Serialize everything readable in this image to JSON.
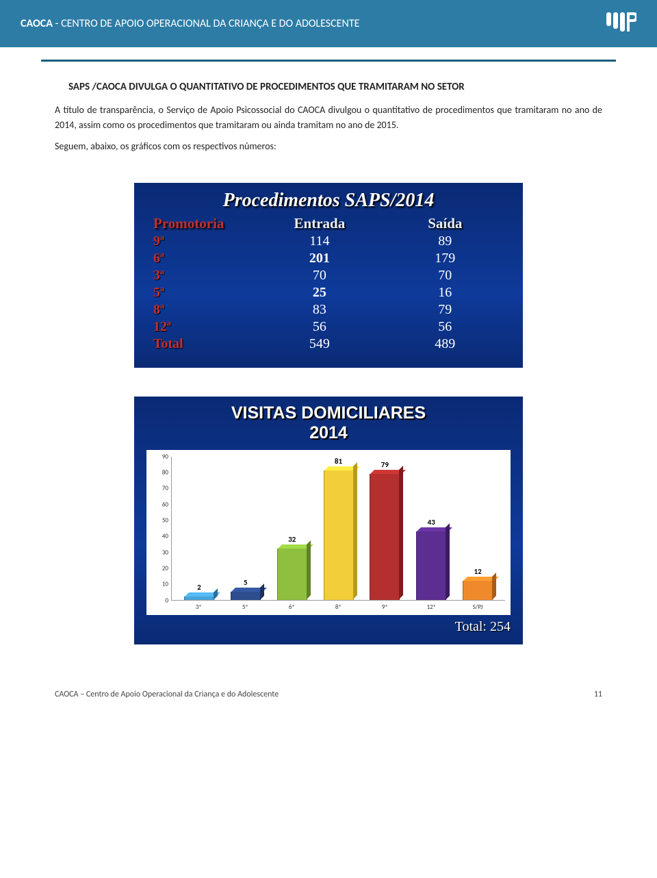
{
  "header": {
    "org_short": "CAOCA",
    "org_long": " - CENTRO DE APOIO OPERACIONAL DA CRIANÇA E DO ADOLESCENTE"
  },
  "section_title": "SAPS /CAOCA DIVULGA O QUANTITATIVO DE PROCEDIMENTOS QUE TRAMITARAM NO SETOR",
  "paragraphs": [
    "A título de transparência, o Serviço de Apoio Psicossocial do CAOCA divulgou o quantitativo de procedimentos que tramitaram no ano de 2014, assim como os procedimentos que tramitaram ou ainda tramitam no ano de 2015.",
    "Seguem, abaixo, os gráficos com os respectivos números:"
  ],
  "table_slide": {
    "title": "Procedimentos SAPS/2014",
    "headers": {
      "promotoria": "Promotoria",
      "entrada": "Entrada",
      "saida": "Saída"
    },
    "rows": [
      {
        "prom": "9ª",
        "entrada": "114",
        "saida": "89",
        "bold": false
      },
      {
        "prom": "6ª",
        "entrada": "201",
        "saida": "179",
        "bold": true
      },
      {
        "prom": "3ª",
        "entrada": "70",
        "saida": "70",
        "bold": false
      },
      {
        "prom": "5ª",
        "entrada": "25",
        "saida": "16",
        "bold": true
      },
      {
        "prom": "8ª",
        "entrada": "83",
        "saida": "79",
        "bold": false
      },
      {
        "prom": "12ª",
        "entrada": "56",
        "saida": "56",
        "bold": false
      },
      {
        "prom": "Total",
        "entrada": "549",
        "saida": "489",
        "bold": false
      }
    ]
  },
  "chart": {
    "title_line1": "VISITAS DOMICILIARES",
    "title_line2": "2014",
    "ymax": 90,
    "ytick_step": 10,
    "categories": [
      "3ª",
      "5ª",
      "6ª",
      "8ª",
      "9ª",
      "12ª",
      "S/PJ"
    ],
    "values": [
      2,
      5,
      32,
      81,
      79,
      43,
      12
    ],
    "bar_colors": [
      "#4aa3d8",
      "#2e4d8f",
      "#8fbf3f",
      "#f2cf3a",
      "#b52f2f",
      "#5d2e91",
      "#ef8a2c"
    ],
    "bar_colors_dark": [
      "#2d6f98",
      "#1c305c",
      "#5e8226",
      "#b89a20",
      "#7d1d1d",
      "#3b1c5e",
      "#a85c18"
    ],
    "total_label": "Total: 254"
  },
  "footer": {
    "text": "CAOCA – Centro de Apoio Operacional da Criança e do Adolescente",
    "page": "11"
  }
}
